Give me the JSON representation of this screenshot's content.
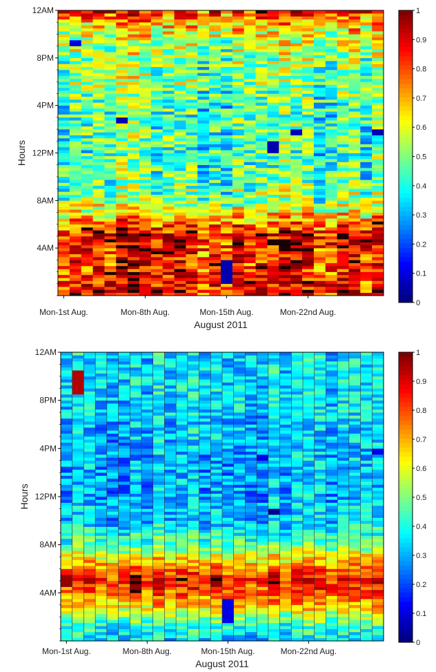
{
  "chart_data": [
    {
      "type": "heatmap",
      "xlabel": "August 2011",
      "ylabel": "Hours",
      "x_ticks": [
        "Mon-1st Aug.",
        "Mon-8th Aug.",
        "Mon-15th Aug.",
        "Mon-22nd Aug."
      ],
      "y_ticks": [
        "12AM",
        "8PM",
        "4PM",
        "12PM",
        "8AM",
        "4AM"
      ],
      "x_categories": [
        "2011-08-01",
        "2011-08-02",
        "2011-08-03",
        "2011-08-04",
        "2011-08-05",
        "2011-08-06",
        "2011-08-07",
        "2011-08-08",
        "2011-08-09",
        "2011-08-10",
        "2011-08-11",
        "2011-08-12",
        "2011-08-13",
        "2011-08-14",
        "2011-08-15",
        "2011-08-16",
        "2011-08-17",
        "2011-08-18",
        "2011-08-19",
        "2011-08-20",
        "2011-08-21",
        "2011-08-22",
        "2011-08-23",
        "2011-08-24",
        "2011-08-25",
        "2011-08-26",
        "2011-08-27",
        "2011-08-28"
      ],
      "colorbar": {
        "min": 0,
        "max": 1,
        "ticks": [
          "0",
          "0.1",
          "0.2",
          "0.3",
          "0.4",
          "0.5",
          "0.6",
          "0.7",
          "0.8",
          "0.9",
          "1"
        ]
      },
      "value_profile_by_hour": [
        0.88,
        0.85,
        0.82,
        0.83,
        0.86,
        0.88,
        0.75,
        0.6,
        0.5,
        0.48,
        0.45,
        0.45,
        0.42,
        0.45,
        0.45,
        0.42,
        0.45,
        0.48,
        0.5,
        0.5,
        0.52,
        0.55,
        0.6,
        0.7
      ],
      "variability": 0.18,
      "anomalies": [
        {
          "x": "2011-08-15",
          "hour_from": 1,
          "hour_to": 3,
          "value": 0.05
        },
        {
          "x": "2011-08-02",
          "hour_from": 21,
          "hour_to": 21.5,
          "value": 0.1
        },
        {
          "x": "2011-08-06",
          "hour_from": 14.5,
          "hour_to": 15,
          "value": 0.05
        },
        {
          "x": "2011-08-19",
          "hour_from": 12,
          "hour_to": 13,
          "value": 0.05
        },
        {
          "x": "2011-08-21",
          "hour_from": 13.5,
          "hour_to": 14,
          "value": 0.05
        },
        {
          "x": "2011-08-28",
          "hour_from": 13.5,
          "hour_to": 14,
          "value": 0.05
        }
      ],
      "seed": 11
    },
    {
      "type": "heatmap",
      "xlabel": "August 2011",
      "ylabel": "Hours",
      "x_ticks": [
        "Mon-1st Aug.",
        "Mon-8th Aug.",
        "Mon-15th Aug.",
        "Mon-22nd Aug."
      ],
      "y_ticks": [
        "12AM",
        "8PM",
        "4PM",
        "12PM",
        "8AM",
        "4AM"
      ],
      "x_categories": [
        "2011-08-01",
        "2011-08-02",
        "2011-08-03",
        "2011-08-04",
        "2011-08-05",
        "2011-08-06",
        "2011-08-07",
        "2011-08-08",
        "2011-08-09",
        "2011-08-10",
        "2011-08-11",
        "2011-08-12",
        "2011-08-13",
        "2011-08-14",
        "2011-08-15",
        "2011-08-16",
        "2011-08-17",
        "2011-08-18",
        "2011-08-19",
        "2011-08-20",
        "2011-08-21",
        "2011-08-22",
        "2011-08-23",
        "2011-08-24",
        "2011-08-25",
        "2011-08-26",
        "2011-08-27",
        "2011-08-28"
      ],
      "colorbar": {
        "min": 0,
        "max": 1,
        "ticks": [
          "0",
          "0.1",
          "0.2",
          "0.3",
          "0.4",
          "0.5",
          "0.6",
          "0.7",
          "0.8",
          "0.9",
          "1"
        ]
      },
      "value_profile_by_hour": [
        0.35,
        0.4,
        0.55,
        0.7,
        0.8,
        0.85,
        0.75,
        0.6,
        0.45,
        0.38,
        0.32,
        0.32,
        0.3,
        0.3,
        0.3,
        0.3,
        0.3,
        0.32,
        0.32,
        0.35,
        0.35,
        0.35,
        0.35,
        0.35
      ],
      "variability": 0.12,
      "anomalies": [
        {
          "x": "2011-08-15",
          "hour_from": 1.5,
          "hour_to": 3.5,
          "value": 0.1
        },
        {
          "x": "2011-08-02",
          "hour_from": 20.5,
          "hour_to": 22.5,
          "value": 0.95
        },
        {
          "x": "2011-08-19",
          "hour_from": 10.5,
          "hour_to": 11,
          "value": 0.02
        },
        {
          "x": "2011-08-28",
          "hour_from": 15.5,
          "hour_to": 16,
          "value": 0.1
        },
        {
          "x": "2011-08-18",
          "hour_from": 15,
          "hour_to": 15.5,
          "value": 0.1
        },
        {
          "x": "2011-08-07",
          "hour_from": 4,
          "hour_to": 5.5,
          "value": 0.98
        },
        {
          "x": "2011-08-14",
          "hour_from": 4.5,
          "hour_to": 5.5,
          "value": 0.98
        },
        {
          "x": "2011-08-01",
          "hour_from": 4.5,
          "hour_to": 5.5,
          "value": 0.98
        }
      ],
      "seed": 29
    }
  ]
}
